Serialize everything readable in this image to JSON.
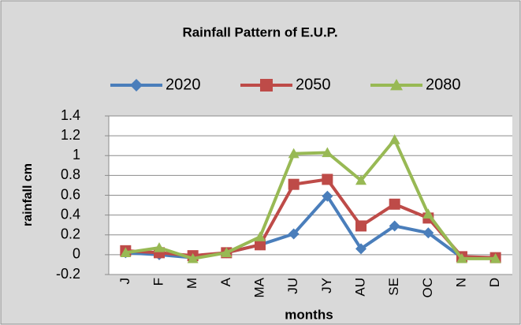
{
  "chart_data": {
    "type": "line",
    "title": "Rainfall Pattern of E.U.P.",
    "x_label": "months",
    "y_label": "rainfall cm",
    "categories": [
      "J",
      "F",
      "M",
      "A",
      "MA",
      "JU",
      "JY",
      "AU",
      "SE",
      "OC",
      "N",
      "D"
    ],
    "series": [
      {
        "name": "2020",
        "color": "#4a7ebb",
        "values": [
          0.02,
          0.0,
          -0.03,
          0.02,
          0.1,
          0.21,
          0.59,
          0.06,
          0.29,
          0.22,
          -0.03,
          -0.03
        ]
      },
      {
        "name": "2050",
        "color": "#be4b48",
        "values": [
          0.04,
          0.02,
          -0.01,
          0.02,
          0.1,
          0.71,
          0.76,
          0.29,
          0.51,
          0.37,
          -0.02,
          -0.03
        ]
      },
      {
        "name": "2080",
        "color": "#98b954",
        "values": [
          0.02,
          0.07,
          -0.04,
          0.02,
          0.18,
          1.02,
          1.03,
          0.75,
          1.16,
          0.41,
          -0.04,
          -0.04
        ]
      }
    ],
    "ylim": [
      -0.2,
      1.4
    ],
    "yticks": [
      -0.2,
      0,
      0.2,
      0.4,
      0.6,
      0.8,
      1,
      1.2,
      1.4
    ],
    "grid": true,
    "legend": "top"
  }
}
